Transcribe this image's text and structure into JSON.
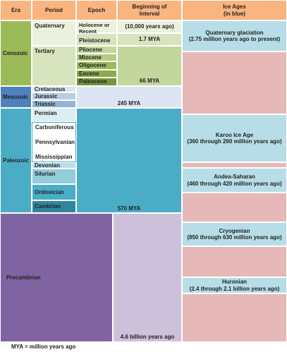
{
  "header": {
    "era": "Era",
    "period": "Period",
    "epoch": "Epoch",
    "beginning": "Beginning of Interval",
    "ice_ages": [
      "Ice Ages",
      "(in blue)"
    ]
  },
  "eras": [
    "Cenozoic",
    "Mesozoic",
    "Paleozoic",
    "Precambrian"
  ],
  "periods": [
    "Quaternary",
    "Tertiary",
    "Cretaceous",
    "Jurassic",
    "Triassic",
    "Permian",
    "Carboniferous",
    "Pennsylvanian",
    "Mississippian",
    "Devonian",
    "Silurian",
    "Ordovician",
    "Cambrian"
  ],
  "epochs": [
    "Holocene or Recent",
    "Pleistocene",
    "Pliocene",
    "Miocene",
    "Oligocene",
    "Eocene",
    "Paleocene"
  ],
  "beginnings": [
    "(10,000 years ago)",
    "1.7 MYA",
    "66 MYA",
    "245 MYA",
    "570 MYA",
    "4.6 billion years ago"
  ],
  "ice_ages": [
    {
      "name": "Quaternary glaciation",
      "span": "(2.75 million years ago to present)"
    },
    {
      "name": "Karoo Ice Age",
      "span": "(360 through 260 million years ago)"
    },
    {
      "name": "Andea-Saharan",
      "span": "(460 through 420 million years ago)"
    },
    {
      "name": "Cryogenian",
      "span": "(850 through 630 million years ago)"
    },
    {
      "name": "Huronian",
      "span": "(2.4 through 2.1 billion years ago)"
    }
  ],
  "footnote": "MYA = million years ago"
}
